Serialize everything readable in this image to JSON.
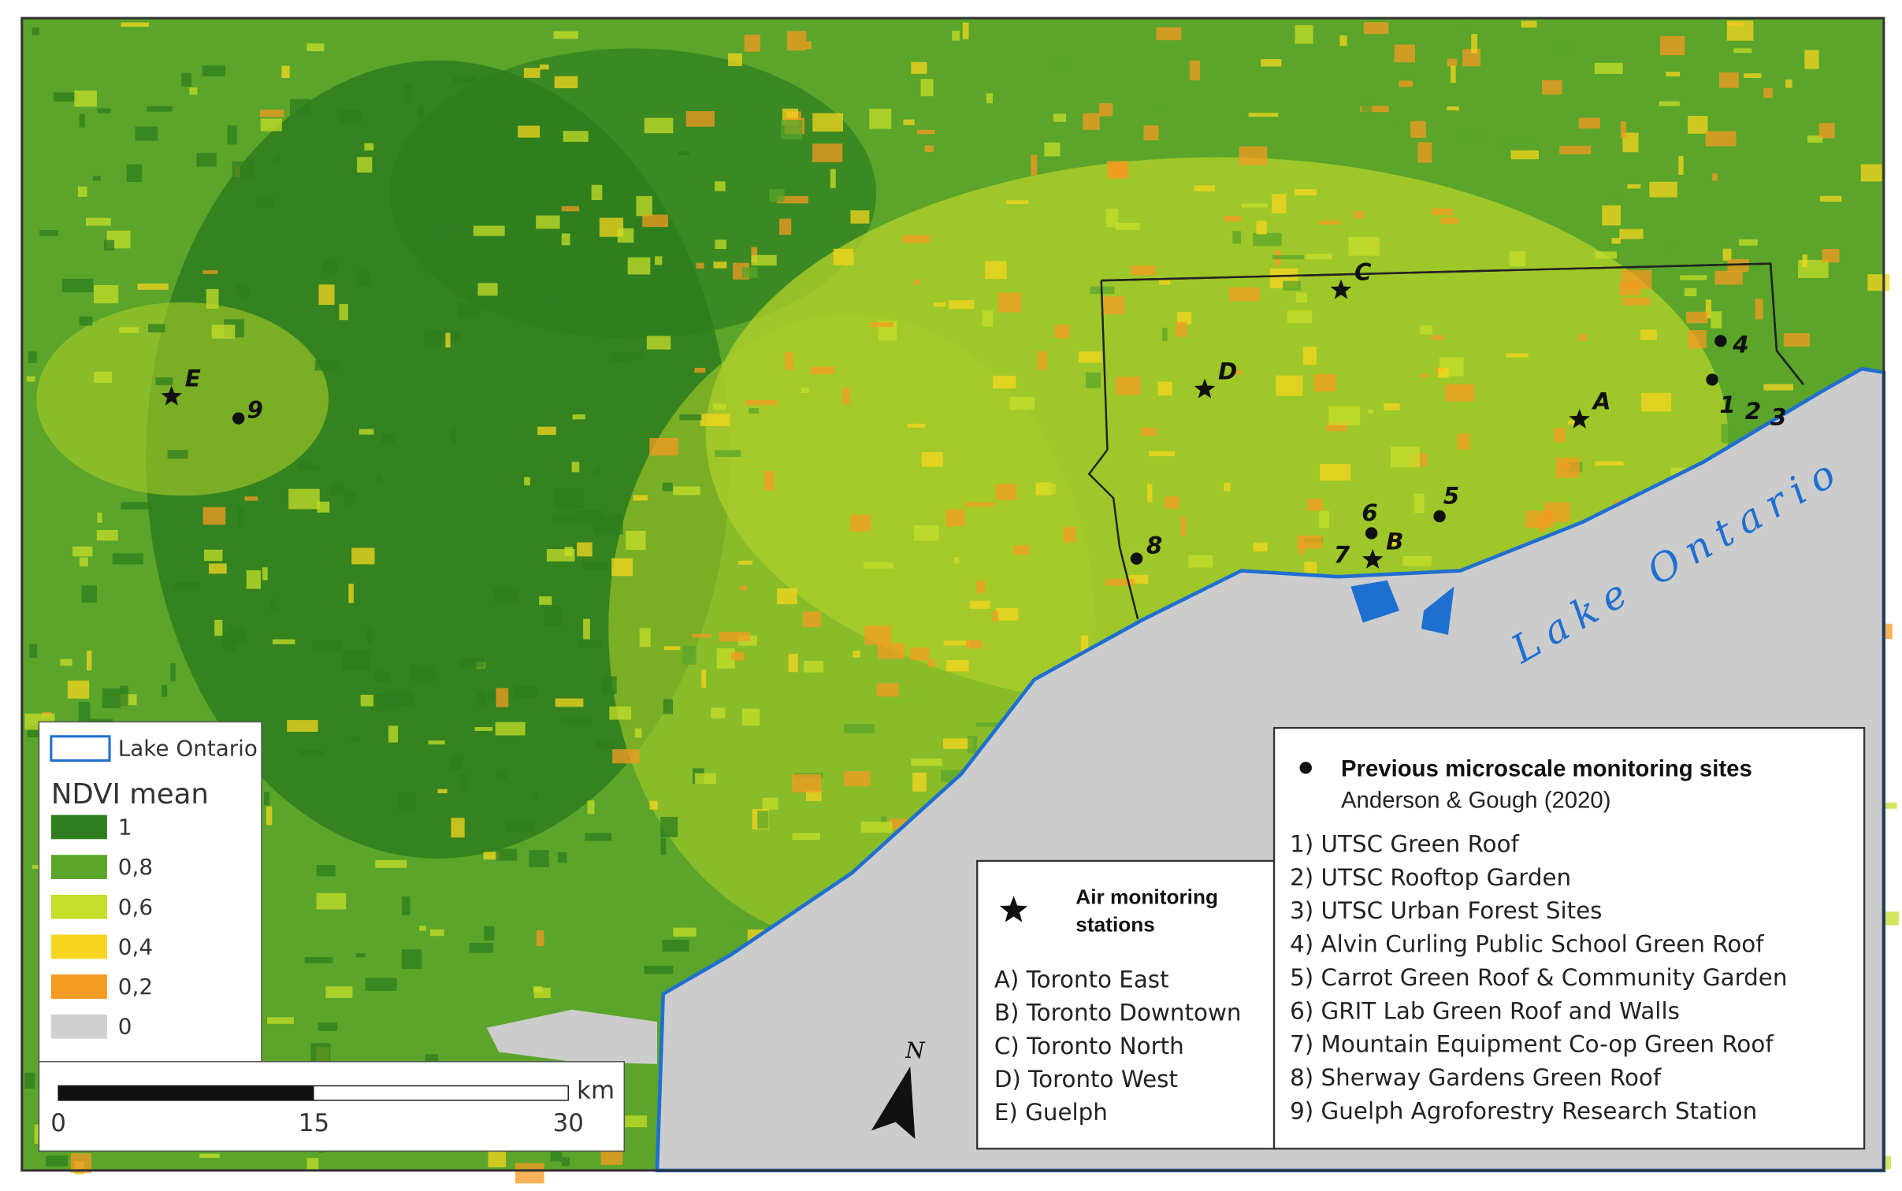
{
  "map_labels": {
    "lake": "Lake Ontario",
    "north": "N"
  },
  "stations": [
    "A",
    "B",
    "C",
    "D",
    "E"
  ],
  "sites": [
    "1",
    "2",
    "3",
    "4",
    "5",
    "6",
    "7",
    "8",
    "9"
  ],
  "ndvi_legend": {
    "lake_entry": "Lake Ontario",
    "title": "NDVI mean",
    "classes": [
      {
        "label": "1",
        "color": "#2e7d1f"
      },
      {
        "label": "0,8",
        "color": "#5aa52a"
      },
      {
        "label": "0,6",
        "color": "#c5de2a"
      },
      {
        "label": "0,4",
        "color": "#f5d51e"
      },
      {
        "label": "0,2",
        "color": "#f59a22"
      },
      {
        "label": "0",
        "color": "#cfcfcf"
      }
    ]
  },
  "scale_bar": {
    "labels": [
      "0",
      "15",
      "30"
    ],
    "unit": "km"
  },
  "stations_legend": {
    "title_lines": [
      "Air monitoring",
      "stations"
    ],
    "items": [
      "A) Toronto East",
      "B) Toronto Downtown",
      "C) Toronto North",
      "D) Toronto West",
      "E) Guelph"
    ]
  },
  "sites_legend": {
    "title": "Previous microscale monitoring sites",
    "citation": "Anderson & Gough (2020)",
    "items": [
      "1) UTSC Green Roof",
      "2) UTSC Rooftop Garden",
      "3) UTSC Urban Forest Sites",
      "4) Alvin Curling Public School Green Roof",
      "5) Carrot Green Roof & Community Garden",
      "6) GRIT Lab Green Roof and Walls",
      "7) Mountain Equipment Co-op Green Roof",
      "8) Sherway Gardens Green Roof",
      "9) Guelph Agroforestry Research Station"
    ]
  }
}
